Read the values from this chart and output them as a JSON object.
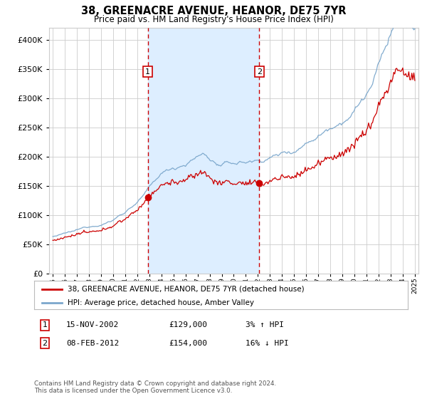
{
  "title": "38, GREENACRE AVENUE, HEANOR, DE75 7YR",
  "subtitle": "Price paid vs. HM Land Registry's House Price Index (HPI)",
  "legend_line1": "38, GREENACRE AVENUE, HEANOR, DE75 7YR (detached house)",
  "legend_line2": "HPI: Average price, detached house, Amber Valley",
  "sale1_date": "15-NOV-2002",
  "sale1_price": 129000,
  "sale1_hpi": "3% ↑ HPI",
  "sale1_label": "1",
  "sale1_year": 2002.88,
  "sale2_date": "08-FEB-2012",
  "sale2_price": 154000,
  "sale2_hpi": "16% ↓ HPI",
  "sale2_label": "2",
  "sale2_year": 2012.12,
  "start_year": 1995,
  "end_year": 2025,
  "ylim_min": 0,
  "ylim_max": 420000,
  "hpi_color": "#7ba7cc",
  "price_color": "#cc0000",
  "shade_color": "#ddeeff",
  "grid_color": "#cccccc",
  "background_color": "#ffffff",
  "footnote": "Contains HM Land Registry data © Crown copyright and database right 2024.\nThis data is licensed under the Open Government Licence v3.0."
}
